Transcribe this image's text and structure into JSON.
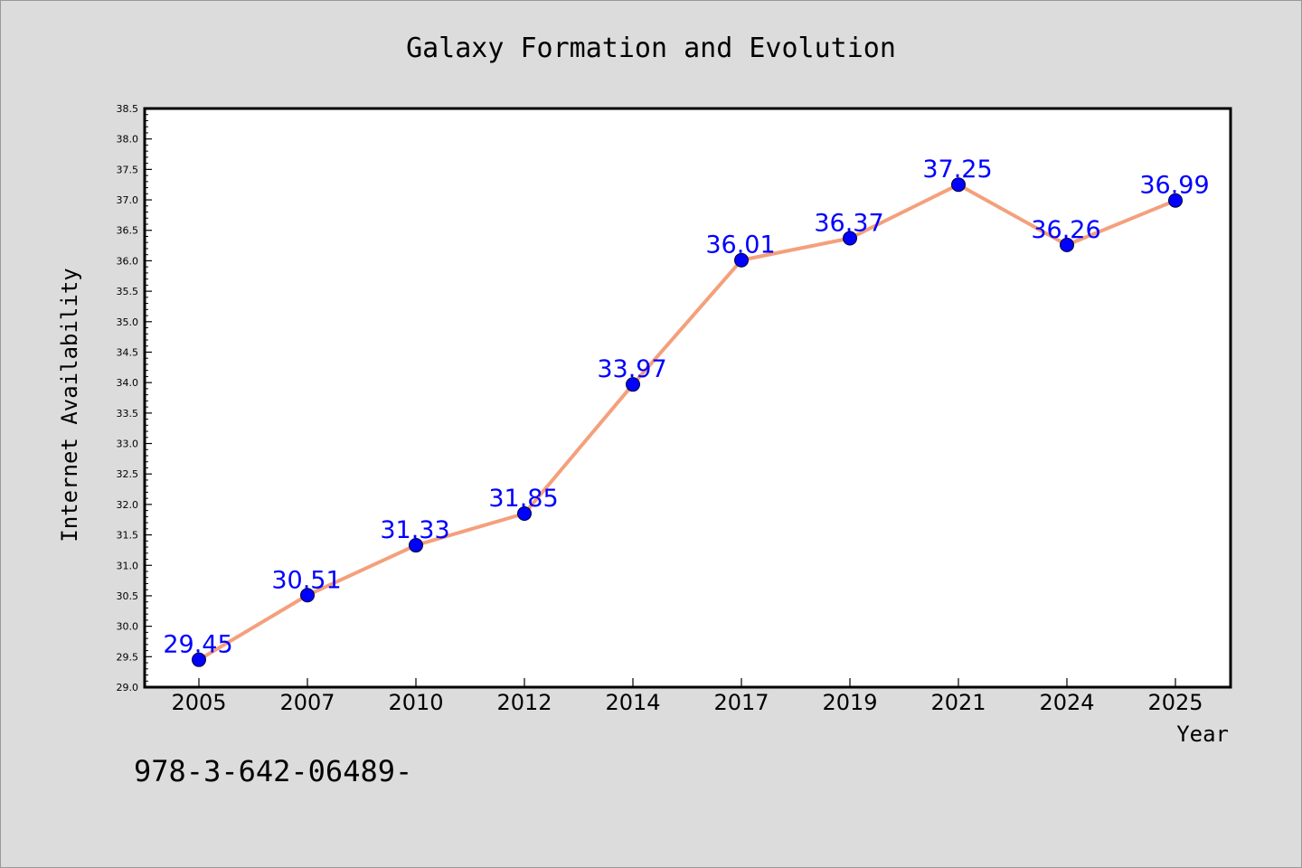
{
  "chart_data": {
    "type": "line",
    "title": "Galaxy Formation and Evolution",
    "xlabel": "Year",
    "ylabel": "Internet Availability",
    "categories": [
      "2005",
      "2007",
      "2010",
      "2012",
      "2014",
      "2017",
      "2019",
      "2021",
      "2024",
      "2025"
    ],
    "series": [
      {
        "values": [
          29.45,
          30.51,
          31.33,
          31.85,
          33.97,
          36.01,
          36.37,
          37.25,
          36.26,
          36.99
        ],
        "line_color": "#f4a07c",
        "marker_color": "#0000ff"
      }
    ],
    "data_labels": [
      "29.45",
      "30.51",
      "31.33",
      "31.85",
      "33.97",
      "36.01",
      "36.37",
      "37.25",
      "36.26",
      "36.99"
    ],
    "ylim": [
      29.0,
      38.5
    ],
    "yticks": [
      "29.0",
      "29.5",
      "30.0",
      "30.5",
      "31.0",
      "31.5",
      "32.0",
      "32.5",
      "33.0",
      "33.5",
      "34.0",
      "34.5",
      "35.0",
      "35.5",
      "36.0",
      "36.5",
      "37.0",
      "37.5",
      "38.0",
      "38.5"
    ],
    "grid": false,
    "legend": "none",
    "data_label_color": "#0000ff"
  },
  "footer": {
    "text": "978-3-642-06489-"
  },
  "colors": {
    "background": "#dcdcdc",
    "plot_background": "#ffffff"
  }
}
